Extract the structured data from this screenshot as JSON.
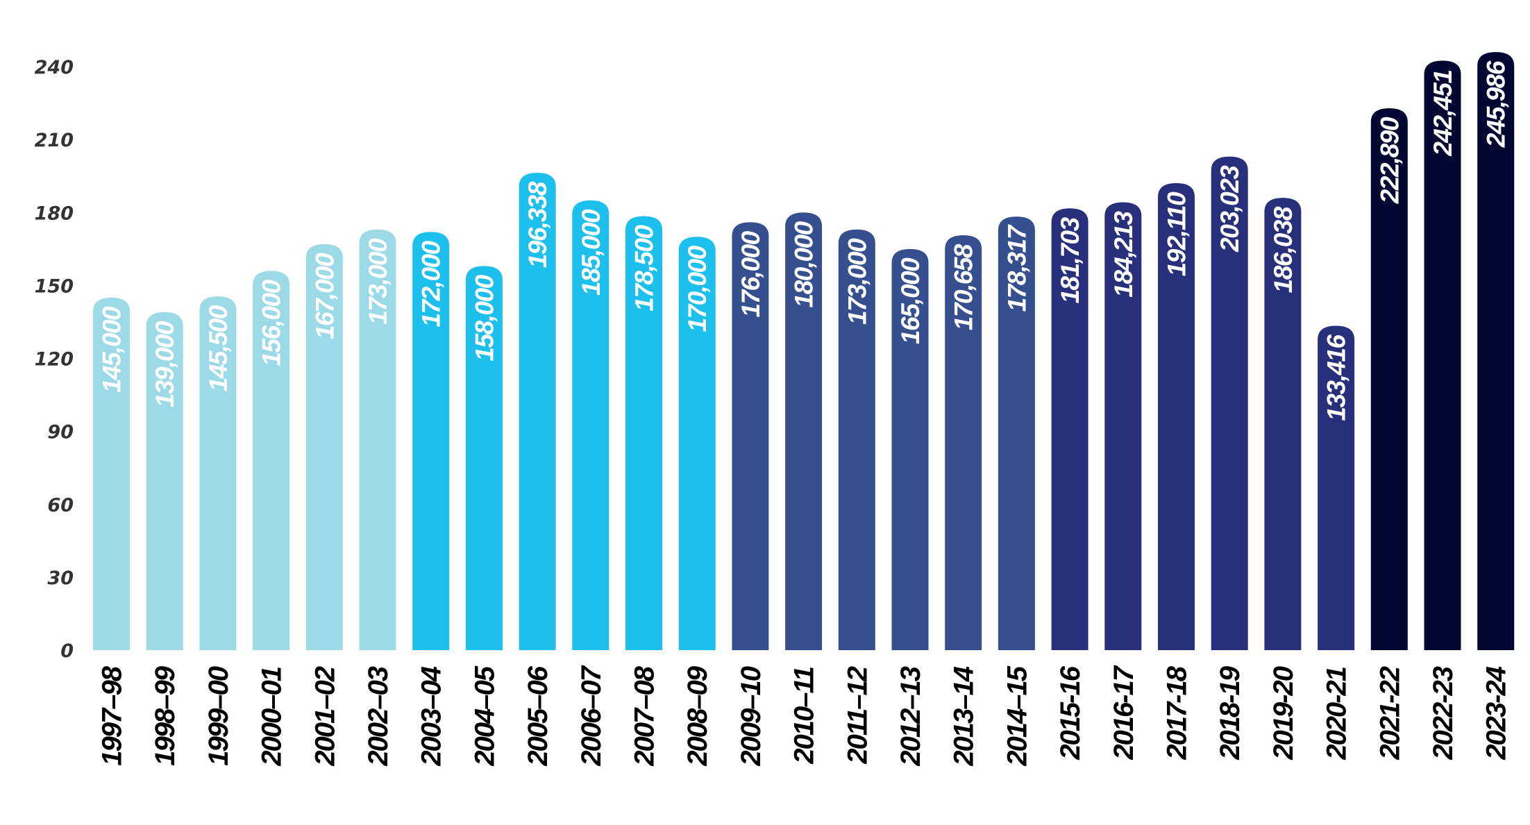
{
  "chart_data": {
    "type": "bar",
    "title": "",
    "xlabel": "",
    "ylabel": "",
    "ylim": [
      0,
      240
    ],
    "yticks": [
      "0",
      "30",
      "60",
      "90",
      "120",
      "150",
      "180",
      "210",
      "240"
    ],
    "grid": false,
    "categories": [
      "1997–98",
      "1998–99",
      "1999–00",
      "2000–01",
      "2001–02",
      "2002–03",
      "2003–04",
      "2004–05",
      "2005–06",
      "2006–07",
      "2007–08",
      "2008–09",
      "2009–10",
      "2010–11",
      "2011–12",
      "2012–13",
      "2013–14",
      "2014–15",
      "2015-16",
      "2016-17",
      "2017-18",
      "2018-19",
      "2019-20",
      "2020-21",
      "2021-22",
      "2022-23",
      "2023-24"
    ],
    "values": [
      145000,
      139000,
      145500,
      156000,
      167000,
      173000,
      172000,
      158000,
      196338,
      185000,
      178500,
      170000,
      176000,
      180000,
      173000,
      165000,
      170658,
      178317,
      181703,
      184213,
      192110,
      203023,
      186038,
      133416,
      222890,
      242451,
      245986
    ],
    "value_labels": [
      "145,000",
      "139,000",
      "145,500",
      "156,000",
      "167,000",
      "173,000",
      "172,000",
      "158,000",
      "196,338",
      "185,000",
      "178,500",
      "170,000",
      "176,000",
      "180,000",
      "173,000",
      "165,000",
      "170,658",
      "178,317",
      "181,703",
      "184,213",
      "192,110",
      "203,023",
      "186,038",
      "133,416",
      "222,890",
      "242,451",
      "245,986"
    ],
    "bar_colors": [
      "#9cdae8",
      "#9cdae8",
      "#9cdae8",
      "#9cdae8",
      "#9cdae8",
      "#9cdae8",
      "#1dbfec",
      "#1dbfec",
      "#1dbfec",
      "#1dbfec",
      "#1dbfec",
      "#1dbfec",
      "#36508f",
      "#36508f",
      "#36508f",
      "#36508f",
      "#36508f",
      "#36508f",
      "#28307b",
      "#28307b",
      "#28307b",
      "#28307b",
      "#28307b",
      "#28307b",
      "#030832",
      "#030832",
      "#030832"
    ],
    "y_unit_scale": 1000
  }
}
